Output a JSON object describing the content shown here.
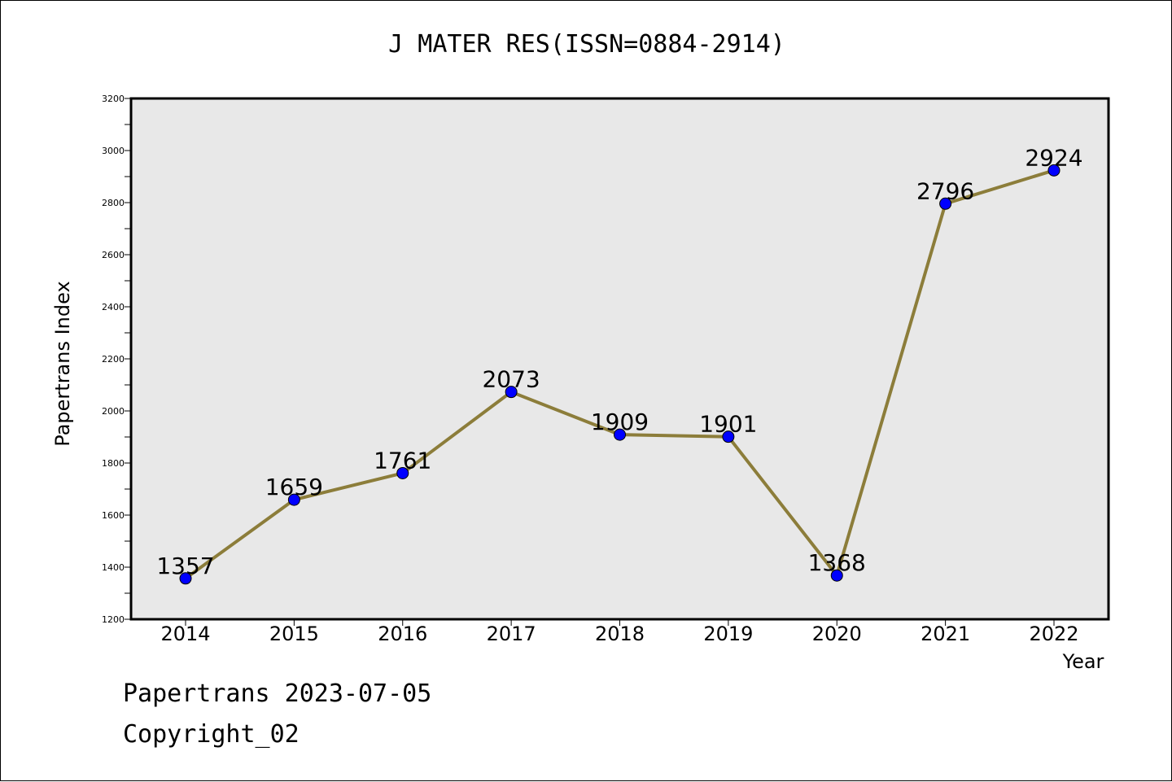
{
  "chart_data": {
    "type": "line",
    "title": "J MATER RES(ISSN=0884-2914)",
    "xlabel": "Year",
    "ylabel": "Papertrans Index",
    "categories": [
      "2014",
      "2015",
      "2016",
      "2017",
      "2018",
      "2019",
      "2020",
      "2021",
      "2022"
    ],
    "series": [
      {
        "values": [
          1357,
          1659,
          1761,
          2073,
          1909,
          1901,
          1368,
          2796,
          2924
        ]
      }
    ],
    "ylim": [
      1200,
      3200
    ],
    "yticks": [
      1200,
      1400,
      1600,
      1800,
      2000,
      2200,
      2400,
      2600,
      2800,
      3000,
      3200
    ],
    "grid": false,
    "line_color": "#8c7d3a",
    "marker_color": "#0000ff",
    "plot_background": "#e8e8e8"
  },
  "footer": {
    "line1": "Papertrans 2023-07-05",
    "line2": "Copyright_02"
  }
}
